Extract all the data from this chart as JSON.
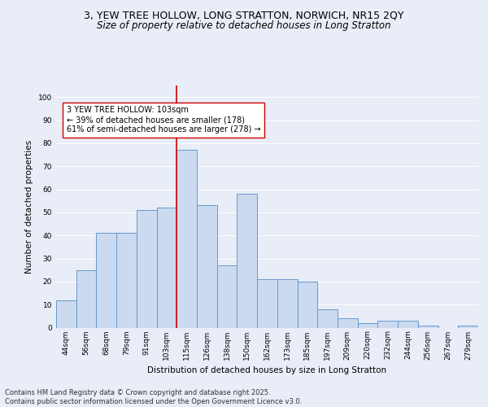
{
  "title1": "3, YEW TREE HOLLOW, LONG STRATTON, NORWICH, NR15 2QY",
  "title2": "Size of property relative to detached houses in Long Stratton",
  "xlabel": "Distribution of detached houses by size in Long Stratton",
  "ylabel": "Number of detached properties",
  "categories": [
    "44sqm",
    "56sqm",
    "68sqm",
    "79sqm",
    "91sqm",
    "103sqm",
    "115sqm",
    "126sqm",
    "138sqm",
    "150sqm",
    "162sqm",
    "173sqm",
    "185sqm",
    "197sqm",
    "209sqm",
    "220sqm",
    "232sqm",
    "244sqm",
    "256sqm",
    "267sqm",
    "279sqm"
  ],
  "values": [
    12,
    25,
    41,
    41,
    51,
    52,
    77,
    53,
    27,
    58,
    21,
    21,
    20,
    8,
    4,
    2,
    3,
    3,
    1,
    0,
    1
  ],
  "bar_color": "#ccdaf0",
  "bar_edge_color": "#6699cc",
  "highlight_index": 5,
  "highlight_line_color": "#cc0000",
  "annotation_box_text": "3 YEW TREE HOLLOW: 103sqm\n← 39% of detached houses are smaller (178)\n61% of semi-detached houses are larger (278) →",
  "annotation_box_color": "#ffffff",
  "annotation_box_edge_color": "#cc0000",
  "footer_text": "Contains HM Land Registry data © Crown copyright and database right 2025.\nContains public sector information licensed under the Open Government Licence v3.0.",
  "background_color": "#e8edf7",
  "plot_bg_color": "#e8edf7",
  "ylim": [
    0,
    105
  ],
  "yticks": [
    0,
    10,
    20,
    30,
    40,
    50,
    60,
    70,
    80,
    90,
    100
  ],
  "grid_color": "#ffffff",
  "title1_fontsize": 9,
  "title2_fontsize": 8.5,
  "axis_label_fontsize": 7.5,
  "tick_fontsize": 6.5,
  "annotation_fontsize": 7,
  "footer_fontsize": 6
}
